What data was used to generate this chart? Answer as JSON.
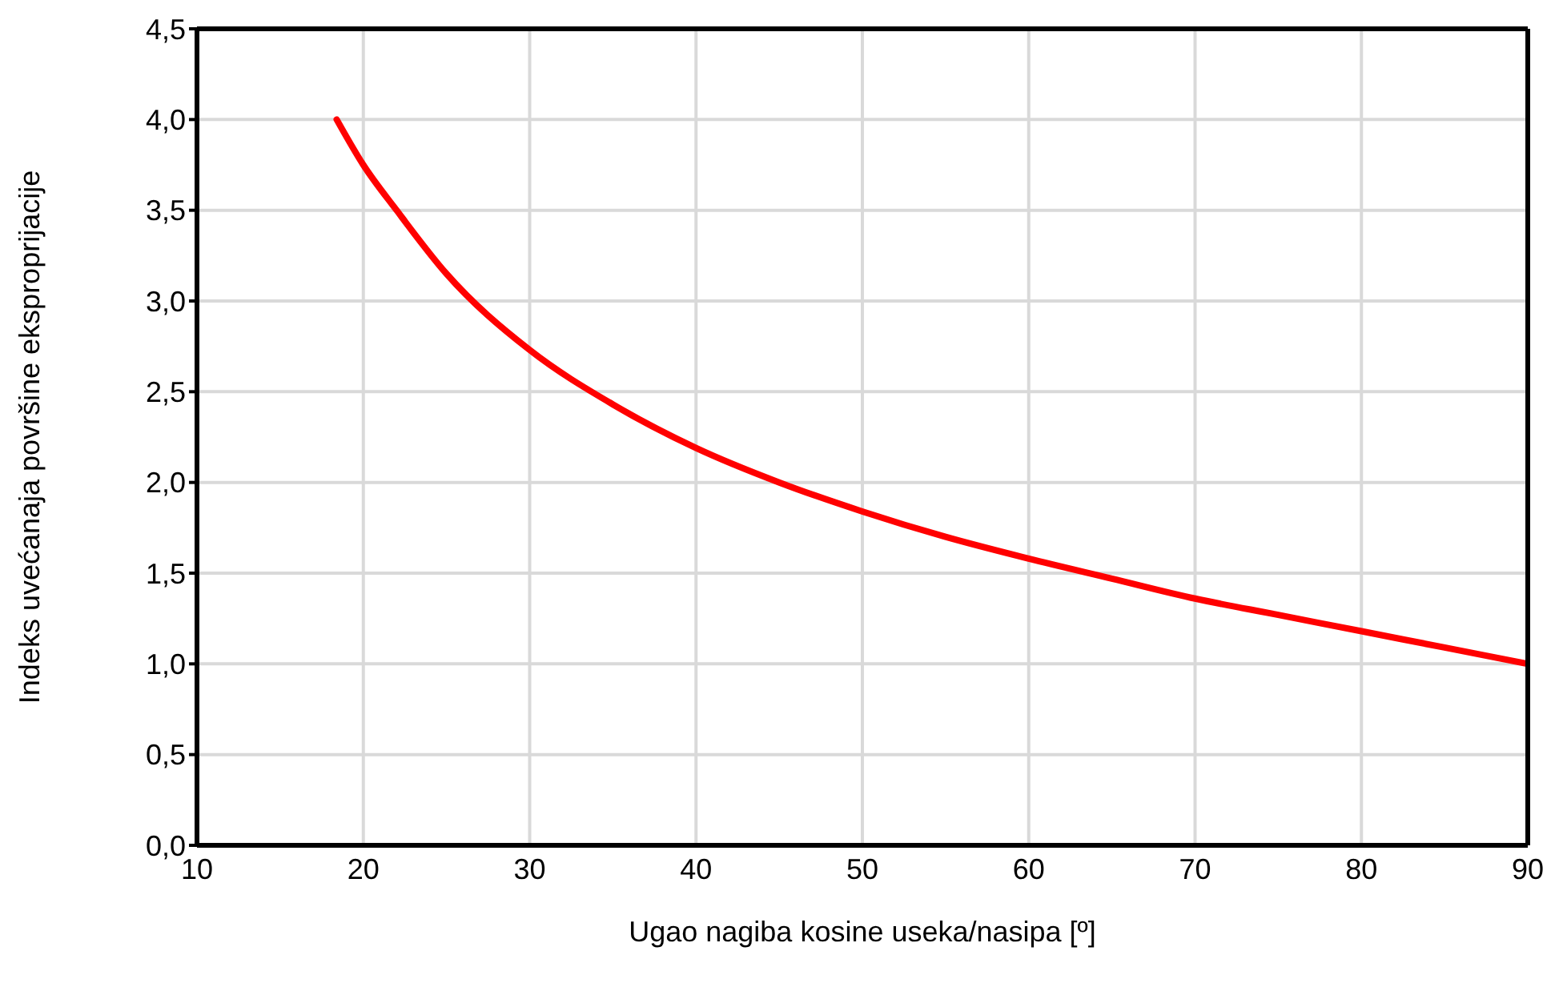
{
  "chart_data": {
    "type": "line",
    "xlabel": "Ugao nagiba kosine useka/nasipa [º]",
    "ylabel": "Indeks uvećanaja površine eksproprijacije",
    "x": [
      18.4,
      20,
      22,
      25,
      30,
      35,
      40,
      45,
      50,
      55,
      60,
      65,
      70,
      75,
      80,
      85,
      90
    ],
    "series": [
      {
        "color": "#ff0000",
        "values": [
          4.0,
          3.75,
          3.5,
          3.15,
          2.73,
          2.43,
          2.19,
          2.0,
          1.84,
          1.7,
          1.58,
          1.47,
          1.36,
          1.27,
          1.18,
          1.09,
          1.0
        ]
      }
    ],
    "xlim": [
      10,
      90
    ],
    "xticks": [
      10,
      20,
      30,
      40,
      50,
      60,
      70,
      80,
      90
    ],
    "ylim": [
      0,
      4.5
    ],
    "yticks": [
      {
        "value": 0,
        "label": "0,0"
      },
      {
        "value": 0.5,
        "label": "0,5"
      },
      {
        "value": 1,
        "label": "1,0"
      },
      {
        "value": 1.5,
        "label": "1,5"
      },
      {
        "value": 2,
        "label": "2,0"
      },
      {
        "value": 2.5,
        "label": "2,5"
      },
      {
        "value": 3,
        "label": "3,0"
      },
      {
        "value": 3.5,
        "label": "3,5"
      },
      {
        "value": 4,
        "label": "4,0"
      },
      {
        "value": 4.5,
        "label": "4,5"
      }
    ],
    "grid": true,
    "marker": "none",
    "line_style": "solid"
  }
}
